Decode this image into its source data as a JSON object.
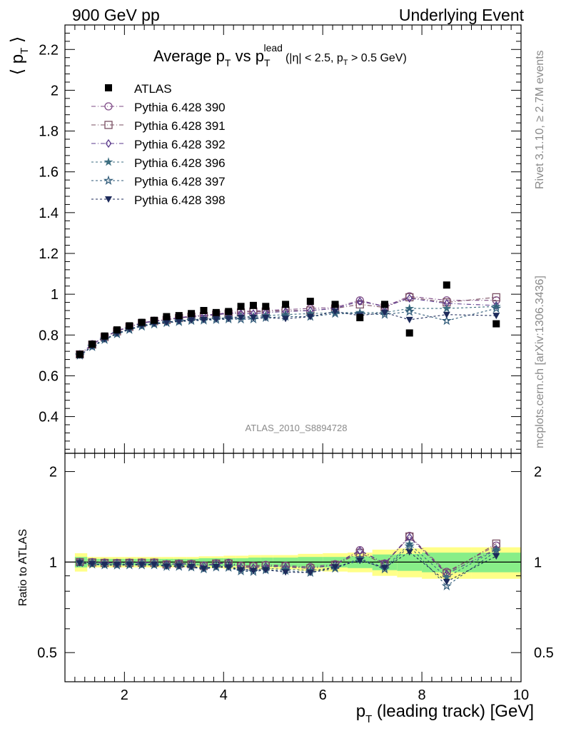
{
  "header": {
    "left": "900 GeV pp",
    "right": "Underlying Event"
  },
  "title": {
    "main": "Average p",
    "sub1": "T",
    "vs": " vs p",
    "sub2": "T",
    "sup": "lead",
    "cuts": "(|η| < 2.5, p",
    "cuts_sub": "T",
    "cuts_end": " > 0.5 GeV)"
  },
  "side_label_top": "Rivet 3.1.10, ≥ 2.7M events",
  "side_label_bottom": "mcplots.cern.ch [arXiv:1306.3436]",
  "watermark": "ATLAS_2010_S8894728",
  "axes": {
    "ylabel_top": "⟨ p",
    "ylabel_top_sub": "T",
    "ylabel_top_end": " ⟩",
    "ylabel_ratio": "Ratio to ATLAS",
    "xlabel": "p",
    "xlabel_sub": "T",
    "xlabel_end": " (leading track) [GeV]"
  },
  "chart_data": {
    "type": "scatter",
    "xlim": [
      0.8,
      10.0
    ],
    "ylim_main": [
      0.22,
      2.32
    ],
    "ylim_ratio": [
      0.4,
      2.3
    ],
    "ratio_log_scale": true,
    "x_ticks": [
      2,
      4,
      6,
      8,
      10
    ],
    "y_ticks_main": [
      0.4,
      0.6,
      0.8,
      1,
      1.2,
      1.4,
      1.6,
      1.8,
      2,
      2.2
    ],
    "y_ticks_ratio": [
      0.5,
      1,
      2
    ],
    "legend_position": "top-left",
    "x": [
      1.1,
      1.35,
      1.6,
      1.85,
      2.1,
      2.35,
      2.6,
      2.85,
      3.1,
      3.35,
      3.6,
      3.85,
      4.1,
      4.35,
      4.6,
      4.85,
      5.25,
      5.75,
      6.25,
      6.75,
      7.25,
      7.75,
      8.5,
      9.5
    ],
    "x_bin_edges": [
      1.0,
      1.25,
      1.5,
      1.75,
      2.0,
      2.25,
      2.5,
      2.75,
      3.0,
      3.25,
      3.5,
      3.75,
      4.0,
      4.25,
      4.5,
      4.75,
      5.0,
      5.5,
      6.0,
      6.5,
      7.0,
      7.5,
      8.0,
      9.0,
      10.0
    ],
    "data": {
      "name": "ATLAS",
      "values": [
        0.705,
        0.755,
        0.795,
        0.825,
        0.845,
        0.862,
        0.872,
        0.89,
        0.895,
        0.905,
        0.92,
        0.91,
        0.915,
        0.94,
        0.945,
        0.94,
        0.95,
        0.965,
        0.95,
        0.885,
        0.95,
        0.81,
        1.045,
        0.855
      ],
      "band_inner": [
        0.04,
        0.025,
        0.025,
        0.025,
        0.025,
        0.025,
        0.025,
        0.025,
        0.025,
        0.025,
        0.03,
        0.03,
        0.03,
        0.03,
        0.035,
        0.035,
        0.035,
        0.04,
        0.04,
        0.045,
        0.06,
        0.065,
        0.075,
        0.075
      ],
      "band_outer": [
        0.07,
        0.04,
        0.04,
        0.04,
        0.04,
        0.04,
        0.04,
        0.04,
        0.04,
        0.04,
        0.045,
        0.045,
        0.05,
        0.05,
        0.055,
        0.055,
        0.055,
        0.065,
        0.07,
        0.075,
        0.1,
        0.11,
        0.12,
        0.12
      ]
    },
    "series": [
      {
        "name": "Pythia 6.428 390",
        "color": "#7e4a86",
        "marker": "circle",
        "dash": "6,3,1,3",
        "values": [
          0.705,
          0.755,
          0.792,
          0.82,
          0.842,
          0.86,
          0.87,
          0.876,
          0.885,
          0.893,
          0.897,
          0.902,
          0.91,
          0.915,
          0.918,
          0.92,
          0.925,
          0.93,
          0.935,
          0.97,
          0.94,
          0.99,
          0.97,
          0.97
        ]
      },
      {
        "name": "Pythia 6.428 391",
        "color": "#7a4f62",
        "marker": "square",
        "dash": "6,3,1,3",
        "values": [
          0.705,
          0.753,
          0.79,
          0.818,
          0.84,
          0.858,
          0.868,
          0.874,
          0.883,
          0.89,
          0.893,
          0.9,
          0.905,
          0.91,
          0.915,
          0.915,
          0.92,
          0.92,
          0.93,
          0.95,
          0.935,
          0.985,
          0.96,
          0.985
        ]
      },
      {
        "name": "Pythia 6.428 392",
        "color": "#5b3a8c",
        "marker": "diamond",
        "dash": "6,3,1,3",
        "values": [
          0.705,
          0.754,
          0.791,
          0.82,
          0.841,
          0.858,
          0.868,
          0.875,
          0.884,
          0.891,
          0.895,
          0.9,
          0.906,
          0.905,
          0.905,
          0.91,
          0.915,
          0.92,
          0.93,
          0.965,
          0.94,
          0.98,
          0.955,
          0.945
        ]
      },
      {
        "name": "Pythia 6.428 396",
        "color": "#3d6e80",
        "marker": "star-filled",
        "dash": "3,3",
        "values": [
          0.7,
          0.745,
          0.78,
          0.808,
          0.83,
          0.847,
          0.857,
          0.863,
          0.87,
          0.876,
          0.878,
          0.882,
          0.885,
          0.89,
          0.89,
          0.895,
          0.9,
          0.905,
          0.91,
          0.91,
          0.91,
          0.93,
          0.93,
          0.94
        ]
      },
      {
        "name": "Pythia 6.428 397",
        "color": "#2f5a78",
        "marker": "star-open",
        "dash": "3,3",
        "values": [
          0.7,
          0.742,
          0.777,
          0.805,
          0.826,
          0.842,
          0.853,
          0.86,
          0.865,
          0.87,
          0.872,
          0.875,
          0.878,
          0.877,
          0.878,
          0.885,
          0.89,
          0.89,
          0.905,
          0.905,
          0.9,
          0.915,
          0.87,
          0.93
        ]
      },
      {
        "name": "Pythia 6.428 398",
        "color": "#1d2a5a",
        "marker": "triangle-down",
        "dash": "3,3",
        "values": [
          0.7,
          0.745,
          0.78,
          0.808,
          0.83,
          0.846,
          0.856,
          0.862,
          0.868,
          0.873,
          0.875,
          0.878,
          0.88,
          0.885,
          0.885,
          0.885,
          0.88,
          0.89,
          0.915,
          0.895,
          0.91,
          0.875,
          0.9,
          0.895
        ]
      }
    ]
  }
}
